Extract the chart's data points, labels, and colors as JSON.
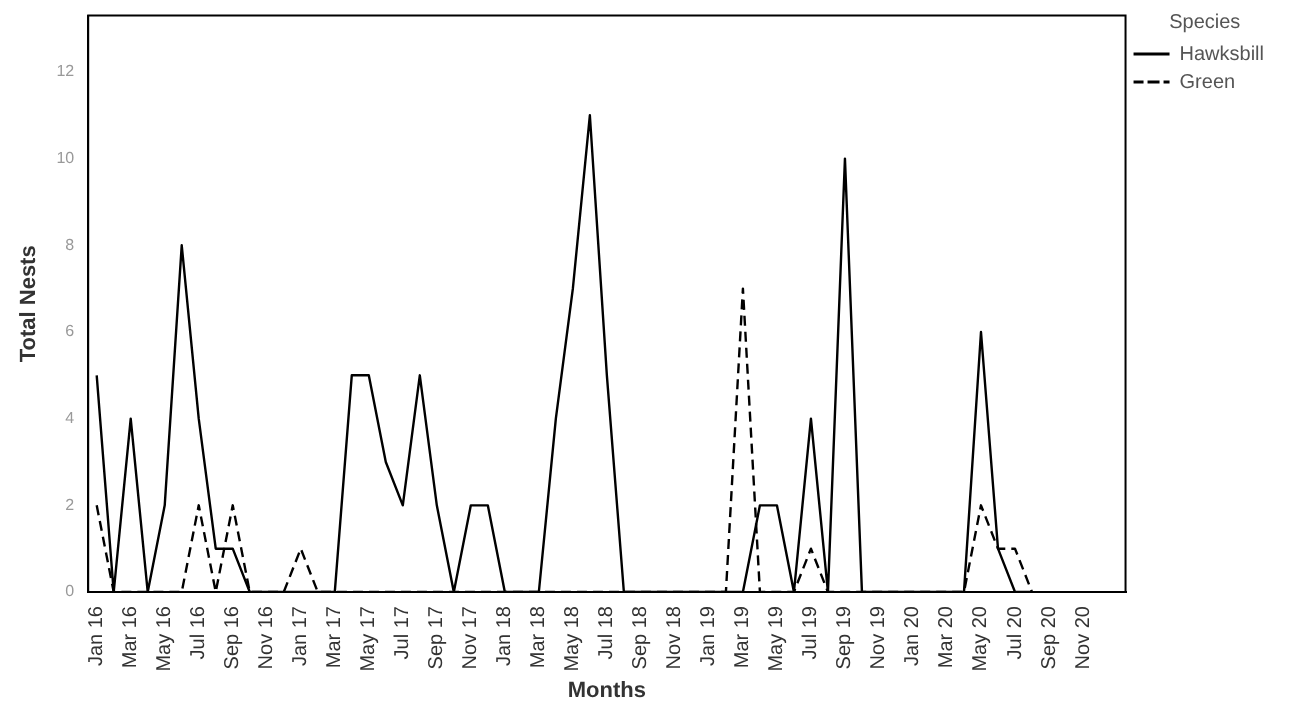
{
  "chart_data": {
    "type": "line",
    "xlabel": "Months",
    "ylabel": "Total Nests",
    "legend_title": "Species",
    "legend": "top right",
    "grid": false,
    "marker": "none",
    "categories": [
      "Jan 16",
      null,
      "Mar 16",
      null,
      "May 16",
      null,
      "Jul 16",
      null,
      "Sep 16",
      null,
      "Nov 16",
      null,
      "Jan 17",
      null,
      "Mar 17",
      null,
      "May 17",
      null,
      "Jul 17",
      null,
      "Sep 17",
      null,
      "Nov 17",
      null,
      "Jan 18",
      null,
      "Mar 18",
      null,
      "May 18",
      null,
      "Jul 18",
      null,
      "Sep 18",
      null,
      "Nov 18",
      null,
      "Jan 19",
      null,
      "Mar 19",
      null,
      "May 19",
      null,
      "Jul 19",
      null,
      "Sep 19",
      null,
      "Nov 19",
      null,
      "Jan 20",
      null,
      "Mar 20",
      null,
      "May 20",
      null,
      "Jul 20",
      null,
      "Sep 20",
      null,
      "Nov 20",
      null,
      null
    ],
    "ylim": [
      0,
      13.3
    ],
    "yticks": [
      0,
      2,
      4,
      6,
      8,
      10,
      12
    ],
    "series": [
      {
        "name": "Hawksbill",
        "color": "#000000",
        "line_style": "solid",
        "values": [
          5,
          0,
          4,
          0,
          2,
          8,
          4,
          1,
          1,
          0,
          0,
          0,
          0,
          0,
          0,
          5,
          5,
          3,
          2,
          5,
          2,
          0,
          2,
          2,
          0,
          0,
          0,
          4,
          7,
          11,
          5,
          0,
          0,
          0,
          0,
          0,
          0,
          0,
          0,
          2,
          2,
          0,
          4,
          0,
          10,
          0,
          0,
          0,
          0,
          0,
          0,
          0,
          6,
          1,
          0,
          0,
          null,
          null,
          null,
          null,
          null
        ]
      },
      {
        "name": "Green",
        "color": "#000000",
        "line_style": "dashed",
        "values": [
          2,
          0,
          0,
          0,
          0,
          0,
          2,
          0,
          2,
          0,
          0,
          0,
          1,
          0,
          0,
          0,
          0,
          0,
          0,
          0,
          0,
          0,
          0,
          0,
          0,
          0,
          0,
          0,
          0,
          0,
          0,
          0,
          0,
          0,
          0,
          0,
          0,
          0,
          7,
          0,
          0,
          0,
          1,
          0,
          0,
          0,
          0,
          0,
          0,
          0,
          0,
          0,
          2,
          1,
          1,
          0,
          null,
          null,
          null,
          null,
          null
        ]
      }
    ]
  }
}
